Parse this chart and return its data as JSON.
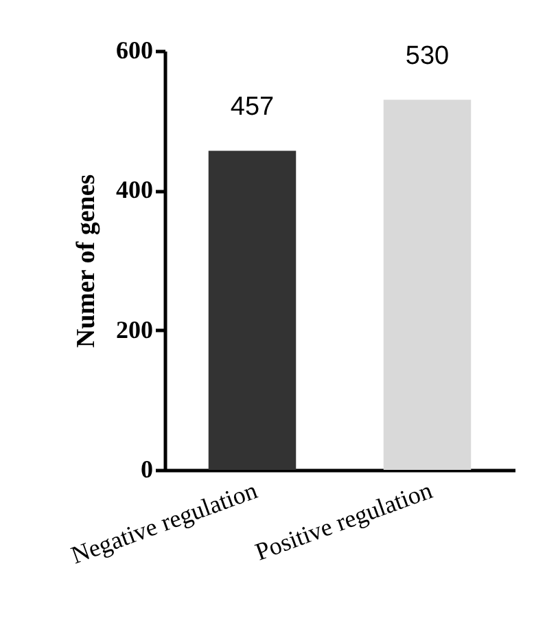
{
  "chart_data": {
    "type": "bar",
    "ylabel": "Numer of genes",
    "categories": [
      "Negative regulation",
      "Positive regulation"
    ],
    "values": [
      457,
      530
    ],
    "colors": [
      "#333333",
      "#d9d9d9"
    ],
    "ylim": [
      0,
      600
    ],
    "yticks": [
      0,
      200,
      400,
      600
    ],
    "data_labels": true,
    "grid": false
  }
}
